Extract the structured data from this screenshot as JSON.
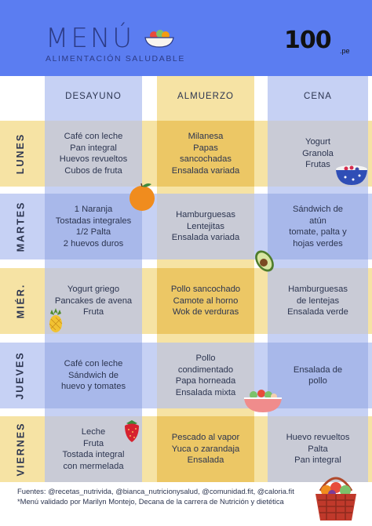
{
  "header": {
    "title": "MENÚ",
    "subtitle": "ALIMENTACIÓN SALUDABLE",
    "logo_text": "100",
    "logo_suffix": ".pe"
  },
  "columns": [
    "DESAYUNO",
    "ALMUERZO",
    "CENA"
  ],
  "days": [
    {
      "label": "LUNES",
      "meals": [
        [
          "Café con leche",
          "Pan integral",
          "Huevos revueltos",
          "Cubos de fruta"
        ],
        [
          "Milanesa",
          "Papas",
          "sancochadas",
          "Ensalada variada"
        ],
        [
          "Yogurt",
          "Granola",
          "Frutas"
        ]
      ]
    },
    {
      "label": "MARTES",
      "meals": [
        [
          "1 Naranja",
          "Tostadas integrales",
          "1/2 Palta",
          "2 huevos duros"
        ],
        [
          "Hamburguesas",
          "Lentejitas",
          "Ensalada variada"
        ],
        [
          "Sándwich de",
          "atún",
          "tomate, palta y",
          "hojas verdes"
        ]
      ]
    },
    {
      "label": "MIÉR.",
      "meals": [
        [
          "Yogurt griego",
          "Pancakes de avena",
          "Fruta"
        ],
        [
          "Pollo sancochado",
          "Camote al horno",
          "Wok de verduras"
        ],
        [
          "Hamburguesas",
          "de lentejas",
          "Ensalada verde"
        ]
      ]
    },
    {
      "label": "JUEVES",
      "meals": [
        [
          "Café con leche",
          "Sándwich de",
          "huevo y tomates"
        ],
        [
          "Pollo",
          "condimentado",
          "Papa horneada",
          "Ensalada mixta"
        ],
        [
          "Ensalada de",
          "pollo"
        ]
      ]
    },
    {
      "label": "VIERNES",
      "meals": [
        [
          "Leche",
          "Fruta",
          "Tostada integral",
          "con mermelada"
        ],
        [
          "Pescado al vapor",
          "Yuca o zarandaja",
          "Ensalada"
        ],
        [
          "Huevo revueltos",
          "Palta",
          "Pan integral"
        ]
      ]
    }
  ],
  "footer": {
    "sources": "Fuentes: @recetas_nutrivida, @bianca_nutricionysalud, @comunidad.fit, @caloria.fit",
    "validation": "*Menú validado por Marilyn Montejo, Decana de la carrera de Nutrición y dietética"
  },
  "colors": {
    "header": "#5b7df1",
    "blue_band": "#c6d1f4",
    "yellow_band": "#f6e3a4",
    "blue_cell": "#a8b8ea",
    "yellow_cell": "#ecc765",
    "gray_cell": "#c9cbd6",
    "text": "#2c3550"
  }
}
